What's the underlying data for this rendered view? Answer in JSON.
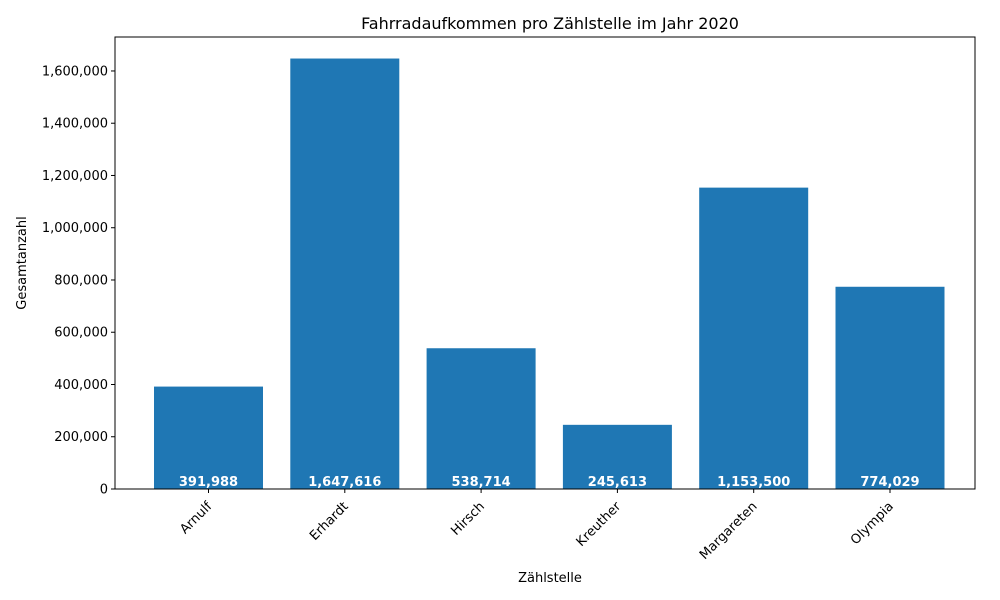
{
  "chart_data": {
    "type": "bar",
    "title": "Fahrradaufkommen pro Zählstelle im Jahr 2020",
    "xlabel": "Zählstelle",
    "ylabel": "Gesamtanzahl",
    "categories": [
      "Arnulf",
      "Erhardt",
      "Hirsch",
      "Kreuther",
      "Margareten",
      "Olympia"
    ],
    "values": [
      391988,
      1647616,
      538714,
      245613,
      1153500,
      774029
    ],
    "value_labels": [
      "391,988",
      "1,647,616",
      "538,714",
      "245,613",
      "1,153,500",
      "774,029"
    ],
    "yticks": [
      0,
      200000,
      400000,
      600000,
      800000,
      1000000,
      1200000,
      1400000,
      1600000
    ],
    "ytick_labels": [
      "0",
      "200,000",
      "400,000",
      "600,000",
      "800,000",
      "1,000,000",
      "1,200,000",
      "1,400,000",
      "1,600,000"
    ],
    "ylim": [
      0,
      1730000
    ],
    "grid": false,
    "legend": "none",
    "bar_color": "#1f77b4",
    "label_color": "#ffffff"
  }
}
